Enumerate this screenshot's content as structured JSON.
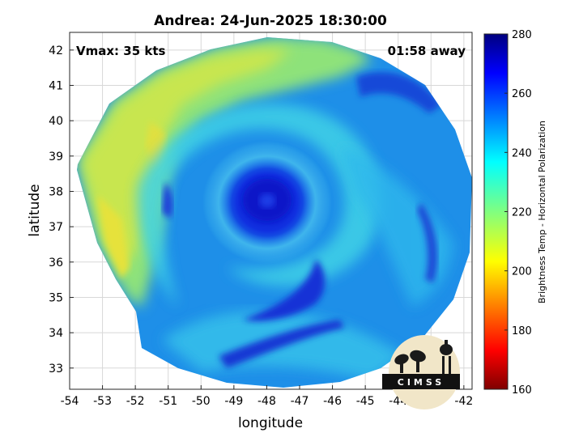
{
  "title": "Andrea: 24-Jun-2025 18:30:00",
  "vmax_label": "Vmax: 35 kts",
  "time_label": "01:58 away",
  "xlabel": "longitude",
  "ylabel": "latitude",
  "x_ticks": [
    "-54",
    "-53",
    "-52",
    "-51",
    "-50",
    "-49",
    "-48",
    "-47",
    "-46",
    "-45",
    "-44",
    "-43",
    "-42"
  ],
  "y_ticks": [
    "42",
    "41",
    "40",
    "39",
    "38",
    "37",
    "36",
    "35",
    "34",
    "33"
  ],
  "x_range": [
    -54,
    -41.75
  ],
  "y_range": [
    32.4,
    42.5
  ],
  "colorbar": {
    "label": "Brightness Temp - Horizontal Polarization",
    "ticks": [
      "280",
      "260",
      "240",
      "220",
      "200",
      "180",
      "160"
    ],
    "range": [
      160,
      280
    ],
    "colormap": "jet"
  },
  "logo_text": "CIMSS",
  "storm_center": {
    "lon": -47.9,
    "lat": 37.6
  },
  "colors": {
    "storm_core": "#0a1fd8",
    "background_field": "#1e8fe8",
    "warm_band": "#c8e650"
  }
}
